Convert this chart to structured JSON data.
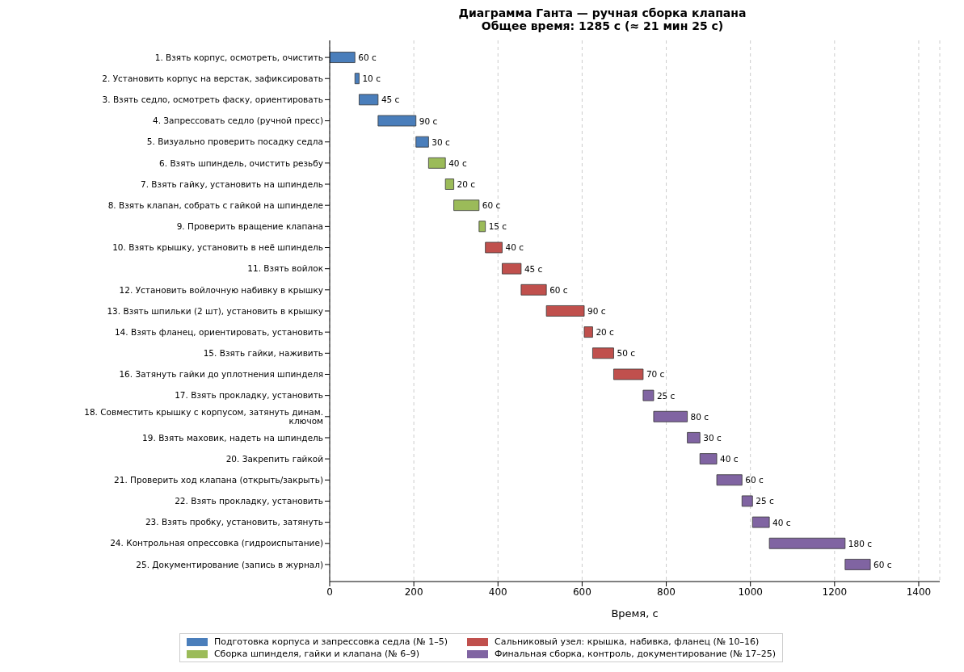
{
  "chart_data": {
    "type": "bar",
    "orientation": "horizontal",
    "title": "Диаграмма Ганта — ручная сборка клапана",
    "subtitle": "Общее время: 1285 с (≈ 21 мин 25 с)",
    "xlabel": "Время, с",
    "categories": [
      "1. Взять корпус, осмотреть, очистить",
      "2. Установить корпус на верстак, зафиксировать",
      "3. Взять седло, осмотреть фаску, ориентировать",
      "4. Запрессовать седло (ручной пресс)",
      "5. Визуально проверить посадку седла",
      "6. Взять шпиндель, очистить резьбу",
      "7. Взять гайку, установить на шпиндель",
      "8. Взять клапан, собрать с гайкой на шпинделе",
      "9. Проверить вращение клапана",
      "10. Взять крышку, установить в неё шпиндель",
      "11. Взять войлок",
      "12. Установить войлочную набивку в крышку",
      "13. Взять шпильки (2 шт), установить в крышку",
      "14. Взять фланец, ориентировать, установить",
      "15. Взять гайки, наживить",
      "16. Затянуть гайки до уплотнения шпинделя",
      "17. Взять прокладку, установить",
      "18. Совместить крышку с корпусом, затянуть динам. ключом",
      "19. Взять маховик, надеть на шпиндель",
      "20. Закрепить гайкой",
      "21. Проверить ход клапана (открыть/закрыть)",
      "22. Взять прокладку, установить",
      "23. Взять пробку, установить, затянуть",
      "24. Контрольная опрессовка (гидроиспытание)",
      "25. Документирование (запись в журнал)"
    ],
    "series": [
      {
        "name": "Подготовка корпуса и запрессовка седла (№ 1–5)",
        "color": "#4a7ebb",
        "values": [
          60,
          10,
          45,
          90,
          30,
          null,
          null,
          null,
          null,
          null,
          null,
          null,
          null,
          null,
          null,
          null,
          null,
          null,
          null,
          null,
          null,
          null,
          null,
          null,
          null
        ],
        "base": [
          0,
          60,
          70,
          115,
          205,
          null,
          null,
          null,
          null,
          null,
          null,
          null,
          null,
          null,
          null,
          null,
          null,
          null,
          null,
          null,
          null,
          null,
          null,
          null,
          null
        ],
        "value_labels": [
          "60 с",
          "10 с",
          "45 с",
          "90 с",
          "30 с",
          null,
          null,
          null,
          null,
          null,
          null,
          null,
          null,
          null,
          null,
          null,
          null,
          null,
          null,
          null,
          null,
          null,
          null,
          null,
          null
        ]
      },
      {
        "name": "Сборка шпинделя, гайки и клапана (№ 6–9)",
        "color": "#9bbb59",
        "values": [
          null,
          null,
          null,
          null,
          null,
          40,
          20,
          60,
          15,
          null,
          null,
          null,
          null,
          null,
          null,
          null,
          null,
          null,
          null,
          null,
          null,
          null,
          null,
          null,
          null
        ],
        "base": [
          null,
          null,
          null,
          null,
          null,
          235,
          275,
          295,
          355,
          null,
          null,
          null,
          null,
          null,
          null,
          null,
          null,
          null,
          null,
          null,
          null,
          null,
          null,
          null,
          null
        ],
        "value_labels": [
          null,
          null,
          null,
          null,
          null,
          "40 с",
          "20 с",
          "60 с",
          "15 с",
          null,
          null,
          null,
          null,
          null,
          null,
          null,
          null,
          null,
          null,
          null,
          null,
          null,
          null,
          null,
          null
        ]
      },
      {
        "name": "Сальниковый узел: крышка, набивка, фланец (№ 10–16)",
        "color": "#c0504d",
        "values": [
          null,
          null,
          null,
          null,
          null,
          null,
          null,
          null,
          null,
          40,
          45,
          60,
          90,
          20,
          50,
          70,
          null,
          null,
          null,
          null,
          null,
          null,
          null,
          null,
          null
        ],
        "base": [
          null,
          null,
          null,
          null,
          null,
          null,
          null,
          null,
          null,
          370,
          410,
          455,
          515,
          605,
          625,
          675,
          null,
          null,
          null,
          null,
          null,
          null,
          null,
          null,
          null
        ],
        "value_labels": [
          null,
          null,
          null,
          null,
          null,
          null,
          null,
          null,
          null,
          "40 с",
          "45 с",
          "60 с",
          "90 с",
          "20 с",
          "50 с",
          "70 с",
          null,
          null,
          null,
          null,
          null,
          null,
          null,
          null,
          null
        ]
      },
      {
        "name": "Финальная сборка, контроль, документирование (№ 17–25)",
        "color": "#8064a2",
        "values": [
          null,
          null,
          null,
          null,
          null,
          null,
          null,
          null,
          null,
          null,
          null,
          null,
          null,
          null,
          null,
          null,
          25,
          80,
          30,
          40,
          60,
          25,
          40,
          180,
          60
        ],
        "base": [
          null,
          null,
          null,
          null,
          null,
          null,
          null,
          null,
          null,
          null,
          null,
          null,
          null,
          null,
          null,
          null,
          745,
          770,
          850,
          880,
          920,
          980,
          1005,
          1045,
          1225
        ],
        "value_labels": [
          null,
          null,
          null,
          null,
          null,
          null,
          null,
          null,
          null,
          null,
          null,
          null,
          null,
          null,
          null,
          null,
          "25 с",
          "80 с",
          "30 с",
          "40 с",
          "60 с",
          "25 с",
          "40 с",
          "180 с",
          "60 с"
        ]
      }
    ],
    "xlim": [
      0,
      1450
    ],
    "xticks": [
      0,
      200,
      400,
      600,
      800,
      1000,
      1200,
      1400
    ],
    "grid": "x",
    "legend": "bottom"
  }
}
